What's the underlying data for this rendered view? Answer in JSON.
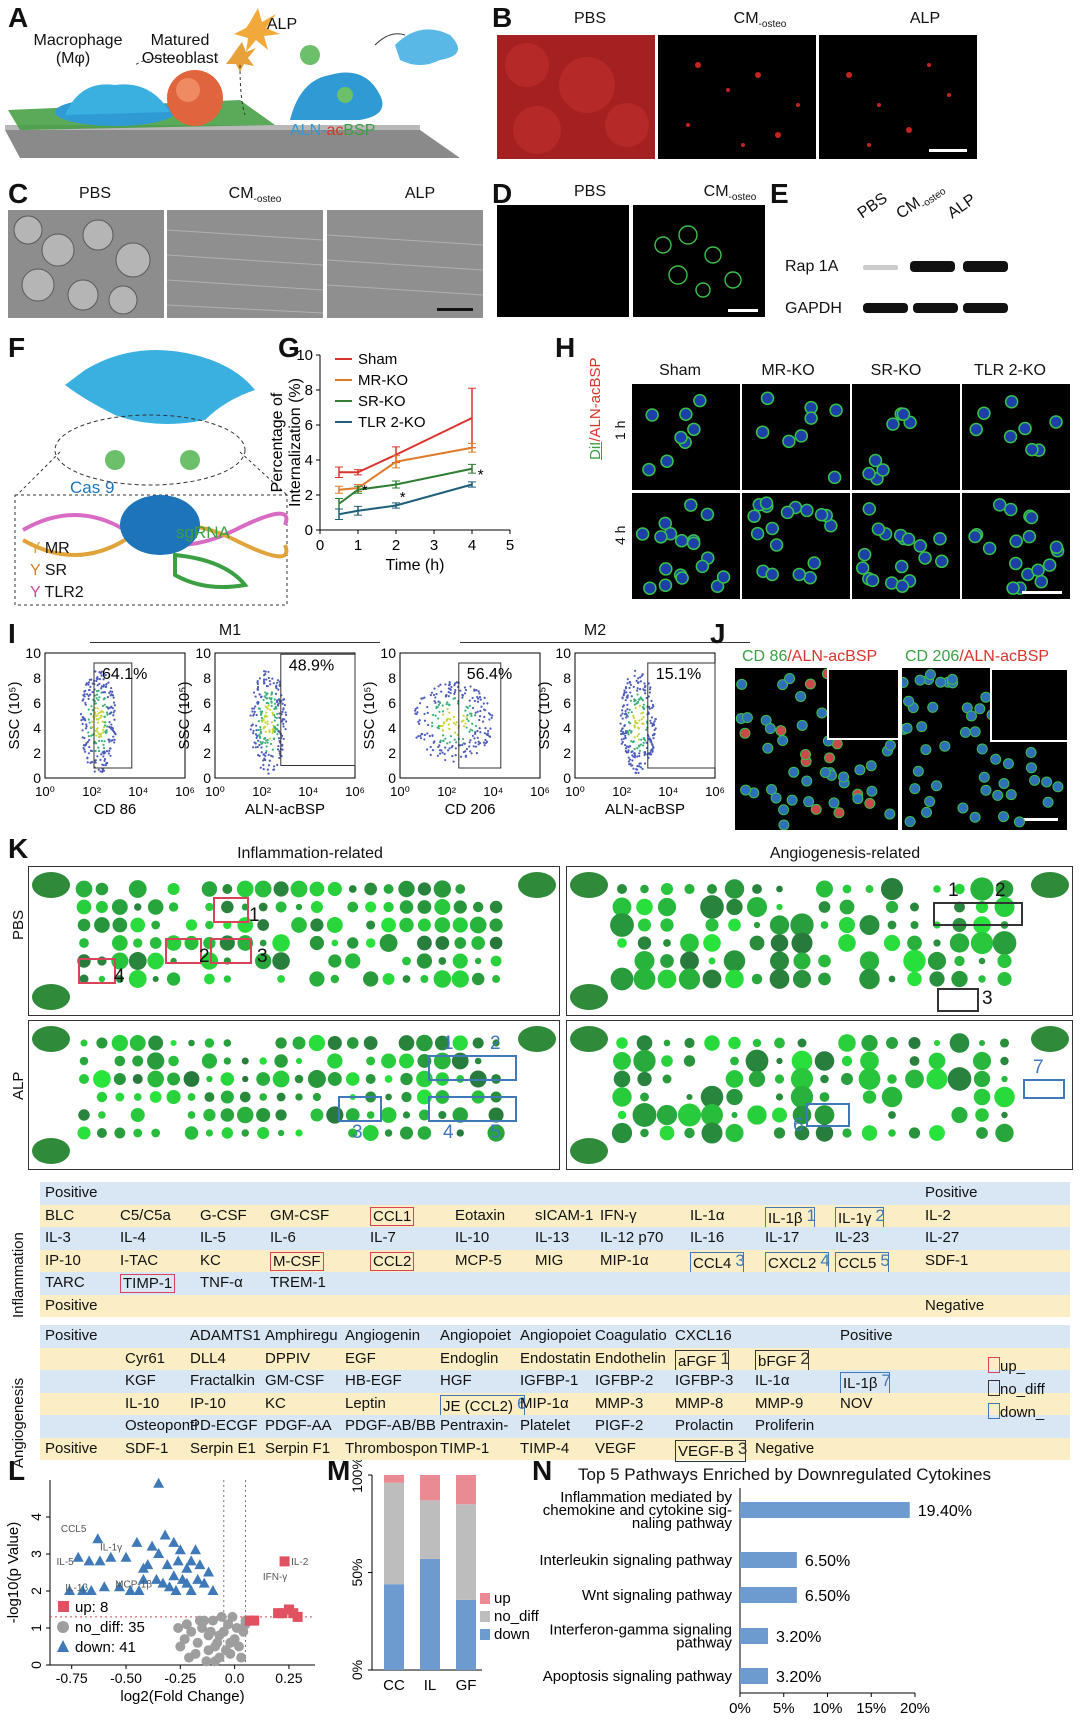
{
  "panels": {
    "A": "A",
    "B": "B",
    "C": "C",
    "D": "D",
    "E": "E",
    "F": "F",
    "G": "G",
    "H": "H",
    "I": "I",
    "J": "J",
    "K": "K",
    "L": "L",
    "M": "M",
    "N": "N"
  },
  "panelA": {
    "macrophage": "Macrophage",
    "macrophage_sub": "(Mφ)",
    "osteoblast": "Matured",
    "osteoblast2": "Osteoblast",
    "alp": "ALP",
    "aln": "ALN-",
    "acbsp_red": "ac",
    "acbsp_green": "BSP"
  },
  "panelB": {
    "labels": [
      "PBS",
      "CM",
      "ALP"
    ],
    "sub": "-osteo"
  },
  "panelC": {
    "labels": [
      "PBS",
      "CM",
      "ALP"
    ],
    "sub": "-osteo"
  },
  "panelD": {
    "labels": [
      "PBS",
      "CM"
    ],
    "sub": "-osteo"
  },
  "panelE": {
    "cols": [
      "PBS",
      "CM",
      "ALP"
    ],
    "sub": "-osteo",
    "rows": [
      "Rap 1A",
      "GAPDH"
    ]
  },
  "panelF": {
    "cas9": "Cas 9",
    "sgrna": "sgRNA",
    "legend": [
      "MR",
      "SR",
      "TLR2"
    ]
  },
  "chart_data": [
    {
      "type": "line",
      "panel": "G",
      "ylabel": "Percentage of Internalization (%)",
      "xlabel": "Time (h)",
      "xlim": [
        0,
        5
      ],
      "ylim": [
        0,
        10
      ],
      "xticks": [
        0,
        1,
        2,
        3,
        4,
        5
      ],
      "yticks": [
        0,
        2,
        4,
        6,
        8,
        10
      ],
      "x": [
        0.5,
        1,
        2,
        4
      ],
      "series": [
        {
          "name": "Sham",
          "color": "#d9342b",
          "values": [
            3.3,
            3.3,
            4.3,
            6.4
          ],
          "err": [
            0.3,
            0.15,
            0.45,
            1.7
          ]
        },
        {
          "name": "MR-KO",
          "color": "#e07b2a",
          "values": [
            2.3,
            2.4,
            3.9,
            4.7
          ],
          "err": [
            0.2,
            0.2,
            0.35,
            0.25
          ]
        },
        {
          "name": "SR-KO",
          "color": "#2e7d32",
          "values": [
            1.5,
            2.3,
            2.6,
            3.5
          ],
          "err": [
            0.3,
            0.2,
            0.2,
            0.25
          ]
        },
        {
          "name": "TLR 2-KO",
          "color": "#1f5f7a",
          "values": [
            0.9,
            1.1,
            1.4,
            2.6
          ],
          "err": [
            0.3,
            0.25,
            0.15,
            0.15
          ]
        }
      ],
      "star": "*"
    },
    {
      "type": "scatter",
      "panel": "L",
      "xlabel": "log2(Fold Change)",
      "ylabel": "-log10(p Value)",
      "xlim": [
        -0.85,
        0.37
      ],
      "ylim": [
        0,
        5
      ],
      "xticks": [
        -0.75,
        -0.5,
        -0.25,
        0.0,
        0.25
      ],
      "xticklabels": [
        "-0.75",
        "-0.50",
        "-0.25",
        "0.0",
        "0.25"
      ],
      "yticks": [
        0,
        1,
        2,
        3,
        4
      ],
      "threshold_y": 1.3,
      "threshold_x": [
        -0.05,
        0.05
      ],
      "annotations": [
        "CCL5",
        "IL-1γ",
        "IL-5",
        "IL-1β",
        "MCP-1β",
        "IFN-γ",
        "IL-2"
      ],
      "legend": [
        {
          "label": "up: 8",
          "color": "#e05261",
          "shape": "square"
        },
        {
          "label": "no_diff: 35",
          "color": "#9e9e9e",
          "shape": "circle"
        },
        {
          "label": "down: 41",
          "color": "#3f79b8",
          "shape": "triangle"
        }
      ],
      "up": [
        [
          0.09,
          1.2
        ],
        [
          0.2,
          1.4
        ],
        [
          0.22,
          1.4
        ],
        [
          0.25,
          1.5
        ],
        [
          0.27,
          1.4
        ],
        [
          0.23,
          2.8
        ],
        [
          0.29,
          1.3
        ],
        [
          0.07,
          1.2
        ]
      ],
      "down": [
        [
          -0.72,
          2.9
        ],
        [
          -0.62,
          2.8
        ],
        [
          -0.67,
          2.8
        ],
        [
          -0.57,
          2.9
        ],
        [
          -0.5,
          2.9
        ],
        [
          -0.42,
          2.6
        ],
        [
          -0.35,
          3.0
        ],
        [
          -0.32,
          3.5
        ],
        [
          -0.25,
          3.1
        ],
        [
          -0.22,
          2.6
        ],
        [
          -0.18,
          3.1
        ],
        [
          -0.35,
          4.9
        ],
        [
          -0.45,
          3.3
        ],
        [
          -0.38,
          3.2
        ],
        [
          -0.28,
          3.3
        ],
        [
          -0.42,
          2.3
        ],
        [
          -0.36,
          2.3
        ],
        [
          -0.33,
          2.2
        ],
        [
          -0.3,
          2.1
        ],
        [
          -0.27,
          2.0
        ],
        [
          -0.24,
          2.3
        ],
        [
          -0.2,
          2.0
        ],
        [
          -0.17,
          2.3
        ],
        [
          -0.14,
          2.2
        ],
        [
          -0.12,
          2.5
        ],
        [
          -0.1,
          2.0
        ],
        [
          -0.16,
          2.7
        ],
        [
          -0.2,
          2.8
        ],
        [
          -0.26,
          2.8
        ],
        [
          -0.31,
          2.7
        ],
        [
          -0.4,
          2.7
        ],
        [
          -0.44,
          2.0
        ],
        [
          -0.48,
          2.0
        ],
        [
          -0.53,
          2.1
        ],
        [
          -0.6,
          2.1
        ],
        [
          -0.66,
          2.0
        ],
        [
          -0.7,
          2.0
        ],
        [
          -0.76,
          2.0
        ],
        [
          -0.63,
          3.4
        ],
        [
          -0.28,
          2.4
        ],
        [
          -0.22,
          2.2
        ]
      ],
      "nodiff": [
        [
          -0.15,
          1.0
        ],
        [
          -0.12,
          0.8
        ],
        [
          -0.1,
          1.2
        ],
        [
          -0.08,
          0.6
        ],
        [
          -0.05,
          0.9
        ],
        [
          -0.03,
          1.1
        ],
        [
          0.0,
          0.7
        ],
        [
          0.02,
          0.5
        ],
        [
          -0.02,
          0.3
        ],
        [
          -0.07,
          0.2
        ],
        [
          -0.12,
          0.4
        ],
        [
          -0.17,
          0.6
        ],
        [
          -0.2,
          0.9
        ],
        [
          -0.22,
          1.1
        ],
        [
          -0.25,
          0.5
        ],
        [
          -0.09,
          0.1
        ],
        [
          0.04,
          0.9
        ],
        [
          0.05,
          1.1
        ],
        [
          -0.01,
          1.3
        ],
        [
          -0.14,
          1.2
        ],
        [
          -0.18,
          0.3
        ],
        [
          -0.04,
          0.4
        ],
        [
          0.01,
          1.0
        ],
        [
          -0.06,
          1.3
        ],
        [
          -0.11,
          0.9
        ],
        [
          -0.13,
          0.1
        ],
        [
          -0.26,
          1.0
        ],
        [
          -0.16,
          1.2
        ],
        [
          -0.02,
          0.6
        ],
        [
          0.03,
          0.2
        ],
        [
          -0.09,
          0.5
        ],
        [
          -0.21,
          0.2
        ],
        [
          -0.23,
          0.7
        ],
        [
          0.05,
          1.2
        ],
        [
          -0.07,
          0.8
        ]
      ]
    },
    {
      "type": "bar",
      "panel": "M",
      "stacked": true,
      "categories": [
        "CC",
        "IL",
        "GF"
      ],
      "yticks": [
        "0%",
        "50%",
        "100%"
      ],
      "series": [
        {
          "name": "down",
          "color": "#6d9bd0",
          "values": [
            44,
            57,
            36
          ]
        },
        {
          "name": "no_diff",
          "color": "#bdbdbd",
          "values": [
            52,
            30,
            49
          ]
        },
        {
          "name": "up",
          "color": "#ea8a93",
          "values": [
            4,
            13,
            15
          ]
        }
      ]
    },
    {
      "type": "bar",
      "panel": "N",
      "orientation": "horizontal",
      "title": "Top 5 Pathways Enriched by Downregulated Cytokines",
      "categories": [
        "Inflammation mediated by chemokine and cytokine signaling pathway",
        "Interleukin signaling pathway",
        "Wnt signaling pathway",
        "Interferon-gamma signaling pathway",
        "Apoptosis signaling pathway"
      ],
      "values": [
        19.4,
        6.5,
        6.5,
        3.2,
        3.2
      ],
      "labels": [
        "19.40%",
        "6.50%",
        "6.50%",
        "3.20%",
        "3.20%"
      ],
      "xticks": [
        "0%",
        "5%",
        "10%",
        "15%",
        "20%"
      ],
      "xlim": [
        0,
        20
      ],
      "color": "#6d9bd0"
    }
  ],
  "panelN_cats": [
    [
      "Inflammation mediated by",
      "chemokine and cytokine sig-",
      "naling pathway"
    ],
    [
      "Interleukin signaling pathway"
    ],
    [
      "Wnt signaling pathway"
    ],
    [
      "Interferon-gamma signaling",
      "pathway"
    ],
    [
      "Apoptosis signaling pathway"
    ]
  ],
  "panelG": {
    "legend": [
      "Sham",
      "MR-KO",
      "SR-KO",
      "TLR 2-KO"
    ],
    "ylab1": "Percentage of",
    "ylab2": "Internalization (%)",
    "xlab": "Time (h)"
  },
  "panelH": {
    "cols": [
      "Sham",
      "MR-KO",
      "SR-KO",
      "TLR 2-KO"
    ],
    "rows": [
      "1 h",
      "4 h"
    ],
    "side_dil": "DiI",
    "side_aln": "ALN-acBSP",
    "slash": "/"
  },
  "panelI": {
    "m1": "M1",
    "m2": "M2",
    "plots": [
      {
        "pct": "64.1%",
        "x": "CD 86"
      },
      {
        "pct": "48.9%",
        "x": "ALN-acBSP"
      },
      {
        "pct": "56.4%",
        "x": "CD 206"
      },
      {
        "pct": "15.1%",
        "x": "ALN-acBSP"
      }
    ],
    "ylabel": "SSC (10⁵)",
    "yticks": [
      "0",
      "2",
      "4",
      "6",
      "8",
      "10"
    ],
    "xticks": [
      "10⁰",
      "10²",
      "10⁴",
      "10⁶"
    ]
  },
  "panelJ": {
    "l1a": "CD 86",
    "l1b": "/ALN-acBSP",
    "l2a": "CD 206",
    "l2b": "/ALN-acBSP"
  },
  "panelK": {
    "left_title": "Inflammation-related",
    "right_title": "Angiogenesis-related",
    "rows": [
      "PBS",
      "ALP"
    ],
    "pbs_left_nums": [
      "1",
      "2",
      "3",
      "4"
    ],
    "pbs_right_nums": [
      "1",
      "2",
      "3"
    ],
    "alp_left_nums": [
      "1",
      "2",
      "3",
      "4",
      "5"
    ],
    "alp_right_nums": [
      "6",
      "7"
    ]
  },
  "table_inflammation": {
    "side": "Inflammation",
    "rows": [
      [
        "Positive",
        "",
        "",
        "",
        "",
        "",
        "",
        "",
        "",
        "",
        "",
        "Positive"
      ],
      [
        "BLC",
        "C5/C5a",
        "G-CSF",
        "GM-CSF",
        "CCL1",
        "Eotaxin",
        "sICAM-1",
        "IFN-γ",
        "IL-1α",
        "IL-1β",
        "IL-1γ",
        "IL-2"
      ],
      [
        "IL-3",
        "IL-4",
        "IL-5",
        "IL-6",
        "IL-7",
        "IL-10",
        "IL-13",
        "IL-12 p70",
        "IL-16",
        "IL-17",
        "IL-23",
        "IL-27"
      ],
      [
        "IP-10",
        "I-TAC",
        "KC",
        "M-CSF",
        "CCL2",
        "MCP-5",
        "MIG",
        "MIP-1α",
        "CCL4",
        "CXCL2",
        "CCL5",
        "SDF-1"
      ],
      [
        "TARC",
        "TIMP-1",
        "TNF-α",
        "TREM-1",
        "",
        "",
        "",
        "",
        "",
        "",
        "",
        ""
      ],
      [
        "Positive",
        "",
        "",
        "",
        "",
        "",
        "",
        "",
        "",
        "",
        "",
        "Negative"
      ]
    ],
    "nums": {
      "IL-1β": "1",
      "IL-1γ": "2",
      "CCL4": "3",
      "CXCL2": "4",
      "CCL5": "5"
    }
  },
  "table_angiogenesis": {
    "side": "Angiogenesis",
    "rows": [
      [
        "Positive",
        "",
        "ADAMTS1",
        "Amphiregu",
        "Angiogenin",
        "Angiopoiet",
        "Angiopoiet",
        "Coagulatio",
        "CXCL16",
        "",
        "Positive"
      ],
      [
        "",
        "Cyr61",
        "DLL4",
        "DPPIV",
        "EGF",
        "Endoglin",
        "Endostatin",
        "Endothelin",
        "aFGF",
        "bFGF",
        ""
      ],
      [
        "",
        "KGF",
        "Fractalkin",
        "GM-CSF",
        "HB-EGF",
        "HGF",
        "IGFBP-1",
        "IGFBP-2",
        "IGFBP-3",
        "IL-1α",
        "IL-1β"
      ],
      [
        "",
        "IL-10",
        "IP-10",
        "KC",
        "Leptin",
        "JE (CCL2)",
        "MIP-1α",
        "MMP-3",
        "MMP-8",
        "MMP-9",
        "NOV"
      ],
      [
        "",
        "Osteoponti",
        "PD-ECGF",
        "PDGF-AA",
        "PDGF-AB/BB",
        "Pentraxin-",
        "Platelet",
        "PIGF-2",
        "Prolactin",
        "Proliferin",
        ""
      ],
      [
        "Positive",
        "SDF-1",
        "Serpin E1",
        "Serpin F1",
        "Thrombospon",
        "TIMP-1",
        "TIMP-4",
        "VEGF",
        "VEGF-B",
        "Negative",
        ""
      ]
    ],
    "nums": {
      "aFGF": "1",
      "bFGF": "2",
      "VEGF-B": "3",
      "JE (CCL2)": "6",
      "IL-1β": "7"
    },
    "legend": [
      "up_",
      "no_diff",
      "down_"
    ]
  },
  "colors": {
    "red": "#d9435a",
    "blue": "#3f79b8",
    "green": "#3aa043",
    "blueRow": "#d9e6f4",
    "yellowRow": "#fbeec4"
  }
}
